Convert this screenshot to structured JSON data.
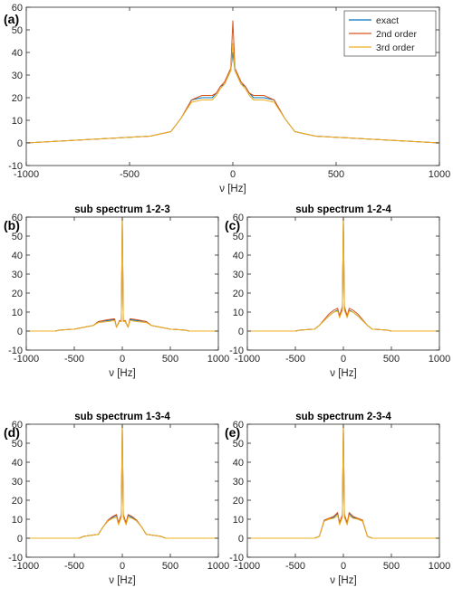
{
  "chart_data": [
    {
      "id": "a",
      "type": "line",
      "panel_label": "(a)",
      "title": "",
      "xlabel": "ν [Hz]",
      "ylabel": "",
      "xlim": [
        -1000,
        1000
      ],
      "ylim": [
        -10,
        60
      ],
      "xticks": [
        -1000,
        -500,
        0,
        500,
        1000
      ],
      "yticks": [
        -10,
        0,
        10,
        20,
        30,
        40,
        50,
        60
      ],
      "grid": false,
      "legend": {
        "placement": "top-right",
        "entries": [
          "exact",
          "2nd order",
          "3rd order"
        ]
      },
      "series": [
        {
          "name": "exact",
          "color": "#0072BD",
          "x": [
            -1000,
            -800,
            -600,
            -400,
            -300,
            -250,
            -200,
            -150,
            -100,
            -80,
            -60,
            -40,
            -20,
            -10,
            0,
            10,
            20,
            40,
            60,
            80,
            100,
            150,
            200,
            250,
            300,
            400,
            600,
            800,
            1000
          ],
          "y": [
            0,
            1,
            2,
            3,
            5,
            11,
            19,
            20,
            20,
            22,
            25,
            26,
            30,
            32,
            40,
            32,
            30,
            26,
            25,
            22,
            20,
            20,
            19,
            11,
            5,
            3,
            2,
            1,
            0
          ]
        },
        {
          "name": "2nd order",
          "color": "#D95319",
          "x": [
            -1000,
            -800,
            -600,
            -400,
            -300,
            -250,
            -200,
            -150,
            -100,
            -80,
            -60,
            -40,
            -20,
            -10,
            0,
            10,
            20,
            40,
            60,
            80,
            100,
            150,
            200,
            250,
            300,
            400,
            600,
            800,
            1000
          ],
          "y": [
            0,
            1,
            2,
            3,
            5,
            11,
            19,
            21,
            21,
            22,
            25,
            27,
            31,
            33,
            54,
            33,
            31,
            27,
            25,
            22,
            21,
            21,
            19,
            11,
            5,
            3,
            2,
            1,
            0
          ]
        },
        {
          "name": "3rd order",
          "color": "#EDB120",
          "x": [
            -1000,
            -800,
            -600,
            -400,
            -300,
            -250,
            -200,
            -150,
            -100,
            -80,
            -60,
            -40,
            -20,
            -10,
            0,
            10,
            20,
            40,
            60,
            80,
            100,
            150,
            200,
            250,
            300,
            400,
            600,
            800,
            1000
          ],
          "y": [
            0,
            1,
            2,
            3,
            5,
            11,
            18,
            19,
            19,
            21,
            24,
            26,
            30,
            32,
            44,
            32,
            30,
            26,
            24,
            21,
            19,
            19,
            18,
            11,
            5,
            3,
            2,
            1,
            0
          ]
        }
      ]
    },
    {
      "id": "b",
      "type": "line",
      "panel_label": "(b)",
      "title": "sub spectrum 1-2-3",
      "xlabel": "ν [Hz]",
      "ylabel": "",
      "xlim": [
        -1000,
        1000
      ],
      "ylim": [
        -10,
        60
      ],
      "xticks": [
        -1000,
        -500,
        0,
        500,
        1000
      ],
      "yticks": [
        -10,
        0,
        10,
        20,
        30,
        40,
        50,
        60
      ],
      "grid": false,
      "series": [
        {
          "name": "exact",
          "color": "#0072BD",
          "x": [
            -1000,
            -700,
            -650,
            -500,
            -300,
            -250,
            -150,
            -80,
            -60,
            -30,
            -10,
            0,
            10,
            30,
            60,
            80,
            150,
            250,
            300,
            500,
            650,
            700,
            1000
          ],
          "y": [
            0,
            0,
            0.5,
            1,
            3,
            5,
            5.5,
            6,
            2,
            5,
            5,
            60,
            5,
            5,
            2,
            6,
            5.5,
            5,
            3,
            1,
            0.5,
            0,
            0
          ]
        },
        {
          "name": "2nd order",
          "color": "#D95319",
          "x": [
            -1000,
            -700,
            -650,
            -500,
            -300,
            -250,
            -150,
            -80,
            -60,
            -30,
            -10,
            0,
            10,
            30,
            60,
            80,
            150,
            250,
            300,
            500,
            650,
            700,
            1000
          ],
          "y": [
            0,
            0,
            0.5,
            1,
            3,
            5,
            6,
            6.5,
            2,
            5.5,
            5.5,
            60,
            5.5,
            5.5,
            2,
            6.5,
            6,
            5,
            3,
            1,
            0.5,
            0,
            0
          ]
        },
        {
          "name": "3rd order",
          "color": "#EDB120",
          "x": [
            -1000,
            -700,
            -650,
            -500,
            -300,
            -250,
            -150,
            -80,
            -60,
            -30,
            -10,
            0,
            10,
            30,
            60,
            80,
            150,
            250,
            300,
            500,
            650,
            700,
            1000
          ],
          "y": [
            0,
            0,
            0.5,
            1,
            3,
            4.5,
            5,
            5.5,
            2,
            5,
            5,
            60,
            5,
            5,
            2,
            5.5,
            5,
            4.5,
            3,
            1,
            0.5,
            0,
            0
          ]
        }
      ]
    },
    {
      "id": "c",
      "type": "line",
      "panel_label": "(c)",
      "title": "sub spectrum 1-2-4",
      "xlabel": "ν [Hz]",
      "ylabel": "",
      "xlim": [
        -1000,
        1000
      ],
      "ylim": [
        -10,
        60
      ],
      "xticks": [
        -1000,
        -500,
        0,
        500,
        1000
      ],
      "yticks": [
        -10,
        0,
        10,
        20,
        30,
        40,
        50,
        60
      ],
      "grid": false,
      "series": [
        {
          "name": "exact",
          "color": "#0072BD",
          "x": [
            -1000,
            -500,
            -450,
            -300,
            -250,
            -150,
            -100,
            -60,
            -40,
            -10,
            0,
            10,
            40,
            60,
            100,
            150,
            250,
            300,
            450,
            500,
            1000
          ],
          "y": [
            0,
            0,
            0.5,
            1,
            3,
            8,
            10,
            11,
            8,
            12,
            60,
            12,
            8,
            11,
            10,
            8,
            3,
            1,
            0.5,
            0,
            0
          ]
        },
        {
          "name": "2nd order",
          "color": "#D95319",
          "x": [
            -1000,
            -500,
            -450,
            -300,
            -250,
            -150,
            -100,
            -60,
            -40,
            -10,
            0,
            10,
            40,
            60,
            100,
            150,
            250,
            300,
            450,
            500,
            1000
          ],
          "y": [
            0,
            0,
            0.5,
            1,
            3,
            9,
            11,
            12,
            8,
            13,
            60,
            13,
            8,
            12,
            11,
            9,
            3,
            1,
            0.5,
            0,
            0
          ]
        },
        {
          "name": "3rd order",
          "color": "#EDB120",
          "x": [
            -1000,
            -500,
            -450,
            -300,
            -250,
            -150,
            -100,
            -60,
            -40,
            -10,
            0,
            10,
            40,
            60,
            100,
            150,
            250,
            300,
            450,
            500,
            1000
          ],
          "y": [
            0,
            0,
            0.5,
            1,
            3,
            8,
            10,
            10.5,
            7,
            11,
            60,
            11,
            7,
            10.5,
            10,
            8,
            3,
            1,
            0.5,
            0,
            0
          ]
        }
      ]
    },
    {
      "id": "d",
      "type": "line",
      "panel_label": "(d)",
      "title": "sub spectrum 1-3-4",
      "xlabel": "ν [Hz]",
      "ylabel": "",
      "xlim": [
        -1000,
        1000
      ],
      "ylim": [
        -10,
        60
      ],
      "xticks": [
        -1000,
        -500,
        0,
        500,
        1000
      ],
      "yticks": [
        -10,
        0,
        10,
        20,
        30,
        40,
        50,
        60
      ],
      "grid": false,
      "series": [
        {
          "name": "exact",
          "color": "#0072BD",
          "x": [
            -1000,
            -450,
            -400,
            -250,
            -200,
            -150,
            -100,
            -60,
            -40,
            -10,
            0,
            10,
            40,
            60,
            100,
            150,
            200,
            250,
            400,
            450,
            1000
          ],
          "y": [
            0,
            0,
            1,
            2,
            6,
            9,
            11,
            12,
            8,
            12,
            60,
            12,
            8,
            12,
            11,
            9,
            6,
            2,
            1,
            0,
            0
          ]
        },
        {
          "name": "2nd order",
          "color": "#D95319",
          "x": [
            -1000,
            -450,
            -400,
            -250,
            -200,
            -150,
            -100,
            -60,
            -40,
            -10,
            0,
            10,
            40,
            60,
            100,
            150,
            200,
            250,
            400,
            450,
            1000
          ],
          "y": [
            0,
            0,
            1,
            2,
            6,
            9.5,
            11.5,
            12.5,
            8,
            12.5,
            60,
            12.5,
            8,
            12.5,
            11.5,
            9.5,
            6,
            2,
            1,
            0,
            0
          ]
        },
        {
          "name": "3rd order",
          "color": "#EDB120",
          "x": [
            -1000,
            -450,
            -400,
            -250,
            -200,
            -150,
            -100,
            -60,
            -40,
            -10,
            0,
            10,
            40,
            60,
            100,
            150,
            200,
            250,
            400,
            450,
            1000
          ],
          "y": [
            0,
            0,
            1,
            2,
            6,
            9,
            10.5,
            11,
            7,
            11,
            60,
            11,
            7,
            11,
            10.5,
            9,
            6,
            2,
            1,
            0,
            0
          ]
        }
      ]
    },
    {
      "id": "e",
      "type": "line",
      "panel_label": "(e)",
      "title": "sub spectrum 2-3-4",
      "xlabel": "ν [Hz]",
      "ylabel": "",
      "xlim": [
        -1000,
        1000
      ],
      "ylim": [
        -10,
        60
      ],
      "xticks": [
        -1000,
        -500,
        0,
        500,
        1000
      ],
      "yticks": [
        -10,
        0,
        10,
        20,
        30,
        40,
        50,
        60
      ],
      "grid": false,
      "series": [
        {
          "name": "exact",
          "color": "#0072BD",
          "x": [
            -1000,
            -300,
            -250,
            -200,
            -150,
            -100,
            -60,
            -40,
            -10,
            0,
            10,
            40,
            60,
            100,
            150,
            200,
            250,
            300,
            1000
          ],
          "y": [
            0,
            0,
            1,
            9,
            10,
            11,
            13,
            8,
            12,
            60,
            12,
            8,
            13,
            11,
            10,
            9,
            1,
            0,
            0
          ]
        },
        {
          "name": "2nd order",
          "color": "#D95319",
          "x": [
            -1000,
            -300,
            -250,
            -200,
            -150,
            -100,
            -60,
            -40,
            -10,
            0,
            10,
            40,
            60,
            100,
            150,
            200,
            250,
            300,
            1000
          ],
          "y": [
            0,
            0,
            1,
            9.5,
            10.5,
            11.5,
            13.5,
            8,
            12.5,
            60,
            12.5,
            8,
            13.5,
            11.5,
            10.5,
            9.5,
            1,
            0,
            0
          ]
        },
        {
          "name": "3rd order",
          "color": "#EDB120",
          "x": [
            -1000,
            -300,
            -250,
            -200,
            -150,
            -100,
            -60,
            -40,
            -10,
            0,
            10,
            40,
            60,
            100,
            150,
            200,
            250,
            300,
            1000
          ],
          "y": [
            0,
            0,
            1,
            9,
            10,
            10.5,
            12,
            7,
            11,
            60,
            11,
            7,
            12,
            10.5,
            10,
            9,
            1,
            0,
            0
          ]
        }
      ]
    }
  ]
}
